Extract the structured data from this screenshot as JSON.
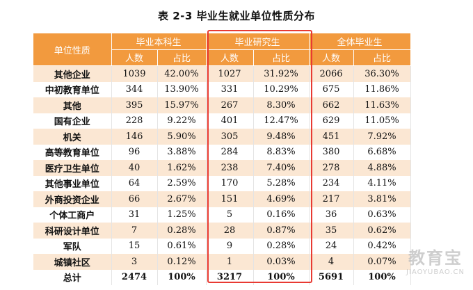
{
  "title": "表 2-3  毕业生就业单位性质分布",
  "header": {
    "category": "单位性质",
    "groups": [
      "毕业本科生",
      "毕业研究生",
      "全体毕业生"
    ],
    "count_label": "人数",
    "ratio_label": "占比"
  },
  "rows": [
    {
      "name": "其他企业",
      "c1": "1039",
      "r1": "42.00%",
      "c2": "1027",
      "r2": "31.92%",
      "c3": "2066",
      "r3": "36.30%"
    },
    {
      "name": "中初教育单位",
      "c1": "344",
      "r1": "13.90%",
      "c2": "331",
      "r2": "10.29%",
      "c3": "675",
      "r3": "11.86%"
    },
    {
      "name": "其他",
      "c1": "395",
      "r1": "15.97%",
      "c2": "267",
      "r2": "8.30%",
      "c3": "662",
      "r3": "11.63%"
    },
    {
      "name": "国有企业",
      "c1": "228",
      "r1": "9.22%",
      "c2": "401",
      "r2": "12.47%",
      "c3": "629",
      "r3": "11.05%"
    },
    {
      "name": "机关",
      "c1": "146",
      "r1": "5.90%",
      "c2": "305",
      "r2": "9.48%",
      "c3": "451",
      "r3": "7.92%"
    },
    {
      "name": "高等教育单位",
      "c1": "96",
      "r1": "3.88%",
      "c2": "284",
      "r2": "8.83%",
      "c3": "380",
      "r3": "6.68%"
    },
    {
      "name": "医疗卫生单位",
      "c1": "40",
      "r1": "1.62%",
      "c2": "238",
      "r2": "7.40%",
      "c3": "278",
      "r3": "4.88%"
    },
    {
      "name": "其他事业单位",
      "c1": "64",
      "r1": "2.59%",
      "c2": "170",
      "r2": "5.28%",
      "c3": "234",
      "r3": "4.11%"
    },
    {
      "name": "外商投资企业",
      "c1": "66",
      "r1": "2.67%",
      "c2": "151",
      "r2": "4.69%",
      "c3": "217",
      "r3": "3.81%"
    },
    {
      "name": "个体工商户",
      "c1": "31",
      "r1": "1.25%",
      "c2": "5",
      "r2": "0.16%",
      "c3": "36",
      "r3": "0.63%"
    },
    {
      "name": "科研设计单位",
      "c1": "7",
      "r1": "0.28%",
      "c2": "28",
      "r2": "0.87%",
      "c3": "35",
      "r3": "0.62%"
    },
    {
      "name": "军队",
      "c1": "15",
      "r1": "0.61%",
      "c2": "9",
      "r2": "0.28%",
      "c3": "24",
      "r3": "0.42%"
    },
    {
      "name": "城镇社区",
      "c1": "3",
      "r1": "0.12%",
      "c2": "1",
      "r2": "0.03%",
      "c3": "4",
      "r3": "0.07%"
    }
  ],
  "total": {
    "name": "总计",
    "c1": "2474",
    "r1": "100%",
    "c2": "3217",
    "r2": "100%",
    "c3": "5691",
    "r3": "100%"
  },
  "watermark": {
    "mark": "教育宝",
    "url": "JIAOYUBAO.CN"
  },
  "colors": {
    "header": "#f29a3e",
    "stripe": "#fbe7d3",
    "highlight": "#e83a32"
  }
}
